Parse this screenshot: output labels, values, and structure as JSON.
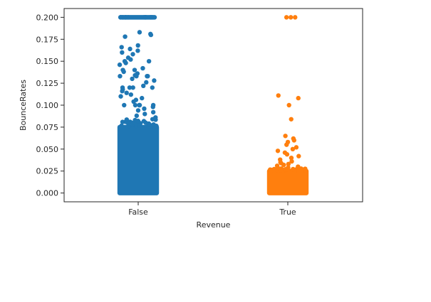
{
  "chart_data": {
    "type": "scatter",
    "subtype": "strip",
    "title": "",
    "xlabel": "Revenue",
    "ylabel": "BounceRates",
    "categories": [
      "False",
      "True"
    ],
    "ylim": [
      -0.01,
      0.21
    ],
    "yticks": [
      0.0,
      0.025,
      0.05,
      0.075,
      0.1,
      0.125,
      0.15,
      0.175,
      0.2
    ],
    "ytick_labels": [
      "0.000",
      "0.025",
      "0.050",
      "0.075",
      "0.100",
      "0.125",
      "0.150",
      "0.175",
      "0.200"
    ],
    "grid": false,
    "legend": "none",
    "series": [
      {
        "category": "False",
        "color": "#1f77b4",
        "values": [
          0.2,
          0.2,
          0.2,
          0.2,
          0.2,
          0.2,
          0.2,
          0.2,
          0.2,
          0.2,
          0.2,
          0.2,
          0.183,
          0.181,
          0.18,
          0.178,
          0.168,
          0.166,
          0.164,
          0.162,
          0.16,
          0.158,
          0.154,
          0.152,
          0.15,
          0.15,
          0.148,
          0.146,
          0.142,
          0.14,
          0.14,
          0.138,
          0.136,
          0.134,
          0.133,
          0.133,
          0.133,
          0.133,
          0.13,
          0.128,
          0.126,
          0.122,
          0.12,
          0.12,
          0.12,
          0.12,
          0.118,
          0.116,
          0.114,
          0.112,
          0.11,
          0.108,
          0.106,
          0.104,
          0.1,
          0.1,
          0.1,
          0.1,
          0.1,
          0.098,
          0.096,
          0.094,
          0.092,
          0.09,
          0.088,
          0.086,
          0.084,
          0.083,
          0.082,
          0.08,
          0.079,
          0.078,
          0.077,
          0.076
        ]
      },
      {
        "category": "True",
        "color": "#ff7f0e",
        "values": [
          0.2,
          0.2,
          0.2,
          0.111,
          0.108,
          0.1,
          0.084,
          0.065,
          0.062,
          0.06,
          0.058,
          0.055,
          0.052,
          0.05,
          0.048,
          0.046,
          0.044,
          0.042,
          0.04,
          0.038,
          0.036,
          0.035,
          0.034,
          0.033,
          0.032,
          0.031,
          0.03,
          0.029,
          0.028,
          0.027,
          0.026
        ]
      }
    ],
    "dense_bands": [
      {
        "category": "False",
        "from": 0.0,
        "to": 0.075
      },
      {
        "category": "True",
        "from": 0.0,
        "to": 0.025
      }
    ]
  }
}
